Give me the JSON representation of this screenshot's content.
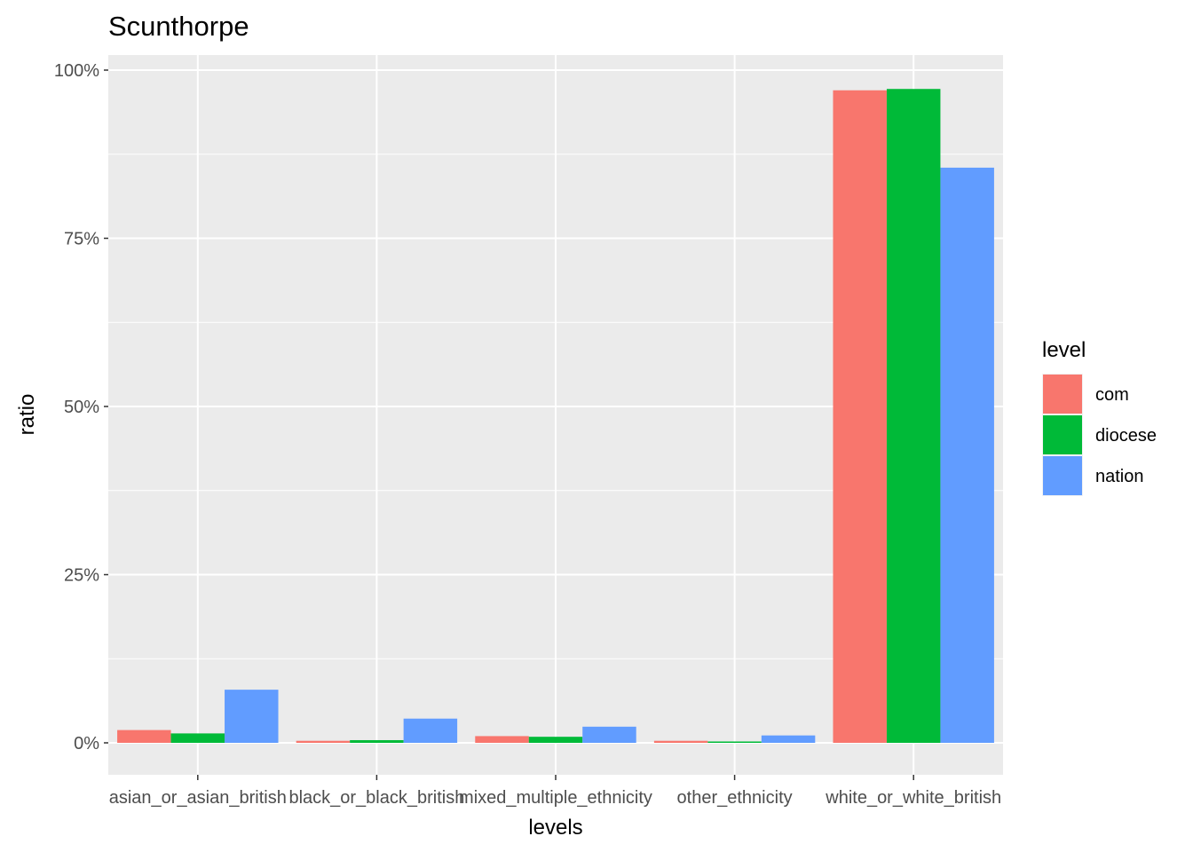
{
  "chart_data": {
    "type": "bar",
    "title": "Scunthorpe",
    "xlabel": "levels",
    "ylabel": "ratio",
    "categories": [
      "asian_or_asian_british",
      "black_or_black_british",
      "mixed_multiple_ethnicity",
      "other_ethnicity",
      "white_or_white_british"
    ],
    "series": [
      {
        "name": "com",
        "color": "#F8766D",
        "values": [
          0.019,
          0.003,
          0.01,
          0.003,
          0.97
        ]
      },
      {
        "name": "diocese",
        "color": "#00BA38",
        "values": [
          0.014,
          0.004,
          0.009,
          0.002,
          0.972
        ]
      },
      {
        "name": "nation",
        "color": "#619CFF",
        "values": [
          0.079,
          0.036,
          0.024,
          0.011,
          0.855
        ]
      }
    ],
    "ylim": [
      -0.046,
      1.02
    ],
    "yticks": [
      0,
      0.25,
      0.5,
      0.75,
      1.0
    ],
    "ytick_labels": [
      "0%",
      "25%",
      "50%",
      "75%",
      "100%"
    ],
    "legend": {
      "title": "level",
      "position": "right"
    },
    "grid": true,
    "panel_color": "#EBEBEB",
    "grid_color": "#FFFFFF"
  }
}
